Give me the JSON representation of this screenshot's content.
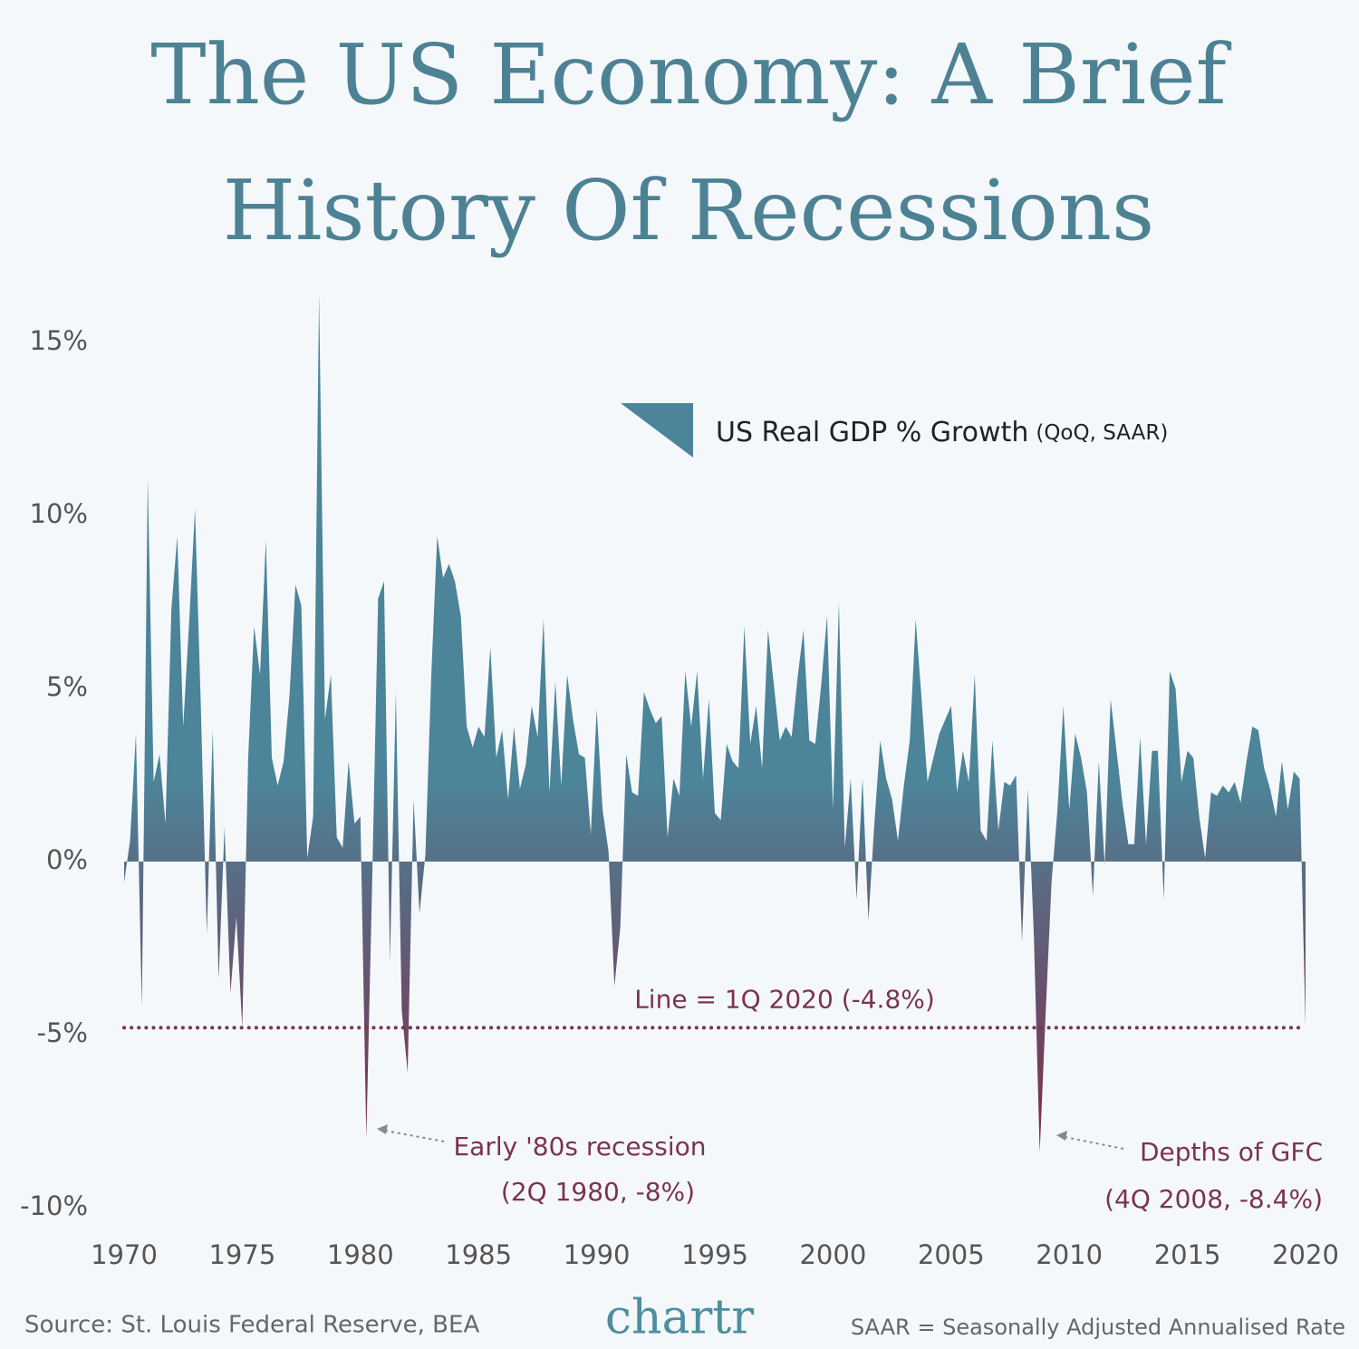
{
  "chart_data": {
    "type": "area",
    "title": [
      "The US Economy: A Brief",
      "History Of Recessions"
    ],
    "series": [
      {
        "name": "US Real GDP % Growth",
        "color_top": "#4c8499",
        "color_bottom": "#7d2c4c",
        "values": [
          -0.6,
          0.6,
          3.7,
          -4.2,
          11.1,
          2.3,
          3.1,
          1.1,
          7.3,
          9.4,
          3.9,
          6.9,
          10.2,
          4.4,
          -2.1,
          3.8,
          -3.4,
          1.0,
          -3.8,
          -1.6,
          -4.8,
          3.0,
          6.8,
          5.4,
          9.3,
          3.0,
          2.2,
          2.9,
          4.8,
          8.0,
          7.4,
          0.1,
          1.3,
          16.4,
          4.1,
          5.4,
          0.7,
          0.4,
          2.9,
          1.1,
          1.3,
          -8.0,
          -0.5,
          7.6,
          8.1,
          -2.9,
          4.9,
          -4.3,
          -6.1,
          1.8,
          -1.5,
          0.2,
          5.4,
          9.4,
          8.2,
          8.6,
          8.1,
          7.1,
          3.9,
          3.3,
          3.9,
          3.6,
          6.2,
          3.0,
          3.8,
          1.8,
          3.9,
          2.1,
          2.8,
          4.5,
          3.6,
          7.0,
          2.0,
          5.2,
          2.2,
          5.4,
          4.1,
          3.1,
          3.0,
          0.8,
          4.4,
          1.5,
          0.3,
          -3.6,
          -1.9,
          3.1,
          2.0,
          1.9,
          4.9,
          4.4,
          4.0,
          4.2,
          0.7,
          2.4,
          1.9,
          5.5,
          3.9,
          5.5,
          2.4,
          4.7,
          1.4,
          1.2,
          3.4,
          2.9,
          2.7,
          6.8,
          3.4,
          4.5,
          2.7,
          6.7,
          5.1,
          3.5,
          3.9,
          3.6,
          5.3,
          6.7,
          3.5,
          3.4,
          5.1,
          7.1,
          1.5,
          7.5,
          0.4,
          2.4,
          -1.1,
          2.4,
          -1.7,
          1.1,
          3.5,
          2.4,
          1.8,
          0.6,
          2.2,
          3.5,
          7.0,
          4.7,
          2.3,
          3.0,
          3.7,
          4.1,
          4.5,
          2.0,
          3.2,
          2.3,
          5.4,
          0.9,
          0.6,
          3.5,
          0.9,
          2.3,
          2.2,
          2.5,
          -2.3,
          2.1,
          -2.1,
          -8.4,
          -4.4,
          -0.6,
          1.5,
          4.5,
          1.5,
          3.7,
          3.0,
          2.0,
          -1.0,
          2.9,
          -0.1,
          4.7,
          3.2,
          1.7,
          0.5,
          0.5,
          3.6,
          0.5,
          3.2,
          3.2,
          -1.1,
          5.5,
          5.0,
          2.3,
          3.2,
          3.0,
          1.3,
          0.1,
          2.0,
          1.9,
          2.2,
          2.0,
          2.3,
          1.7,
          2.9,
          3.9,
          3.8,
          2.7,
          2.1,
          1.3,
          2.9,
          1.5,
          2.6,
          2.4,
          -4.8
        ]
      }
    ],
    "x": [
      1970,
      1970.25,
      1970.5,
      1970.75,
      1971,
      1971.25,
      1971.5,
      1971.75,
      1972,
      1972.25,
      1972.5,
      1972.75,
      1973,
      1973.25,
      1973.5,
      1973.75,
      1974,
      1974.25,
      1974.5,
      1974.75,
      1975,
      1975.25,
      1975.5,
      1975.75,
      1976,
      1976.25,
      1976.5,
      1976.75,
      1977,
      1977.25,
      1977.5,
      1977.75,
      1978,
      1978.25,
      1978.5,
      1978.75,
      1979,
      1979.25,
      1979.5,
      1979.75,
      1980,
      1980.25,
      1980.5,
      1980.75,
      1981,
      1981.25,
      1981.5,
      1981.75,
      1982,
      1982.25,
      1982.5,
      1982.75,
      1983,
      1983.25,
      1983.5,
      1983.75,
      1984,
      1984.25,
      1984.5,
      1984.75,
      1985,
      1985.25,
      1985.5,
      1985.75,
      1986,
      1986.25,
      1986.5,
      1986.75,
      1987,
      1987.25,
      1987.5,
      1987.75,
      1988,
      1988.25,
      1988.5,
      1988.75,
      1989,
      1989.25,
      1989.5,
      1989.75,
      1990,
      1990.25,
      1990.5,
      1990.75,
      1991,
      1991.25,
      1991.5,
      1991.75,
      1992,
      1992.25,
      1992.5,
      1992.75,
      1993,
      1993.25,
      1993.5,
      1993.75,
      1994,
      1994.25,
      1994.5,
      1994.75,
      1995,
      1995.25,
      1995.5,
      1995.75,
      1996,
      1996.25,
      1996.5,
      1996.75,
      1997,
      1997.25,
      1997.5,
      1997.75,
      1998,
      1998.25,
      1998.5,
      1998.75,
      1999,
      1999.25,
      1999.5,
      1999.75,
      2000,
      2000.25,
      2000.5,
      2000.75,
      2001,
      2001.25,
      2001.5,
      2001.75,
      2002,
      2002.25,
      2002.5,
      2002.75,
      2003,
      2003.25,
      2003.5,
      2003.75,
      2004,
      2004.25,
      2004.5,
      2004.75,
      2005,
      2005.25,
      2005.5,
      2005.75,
      2006,
      2006.25,
      2006.5,
      2006.75,
      2007,
      2007.25,
      2007.5,
      2007.75,
      2008,
      2008.25,
      2008.5,
      2008.75,
      2009,
      2009.25,
      2009.5,
      2009.75,
      2010,
      2010.25,
      2010.5,
      2010.75,
      2011,
      2011.25,
      2011.5,
      2011.75,
      2012,
      2012.25,
      2012.5,
      2012.75,
      2013,
      2013.25,
      2013.5,
      2013.75,
      2014,
      2014.25,
      2014.5,
      2014.75,
      2015,
      2015.25,
      2015.5,
      2015.75,
      2016,
      2016.25,
      2016.5,
      2016.75,
      2017,
      2017.25,
      2017.5,
      2017.75,
      2018,
      2018.25,
      2018.5,
      2018.75,
      2019,
      2019.25,
      2019.5,
      2019.75,
      2020
    ],
    "xlim": [
      1970,
      2020
    ],
    "xticks": [
      1970,
      1975,
      1980,
      1985,
      1990,
      1995,
      2000,
      2005,
      2010,
      2015,
      2020
    ],
    "ylim": [
      -10,
      16.5
    ],
    "yticks": [
      {
        "value": 15,
        "label": "15%"
      },
      {
        "value": 10,
        "label": "10%"
      },
      {
        "value": 5,
        "label": "5%"
      },
      {
        "value": 0,
        "label": "0%"
      },
      {
        "value": -5,
        "label": "-5%"
      },
      {
        "value": -10,
        "label": "-10%"
      }
    ],
    "legend_note": "(QoQ, SAAR)",
    "reference_line": {
      "value": -4.8,
      "label": "Line = 1Q 2020 (-4.8%)",
      "color": "#7b3350"
    },
    "annotations": [
      {
        "lines": [
          "Early '80s recession",
          "(2Q 1980, -8%)"
        ]
      },
      {
        "lines": [
          "Depths of GFC",
          "(4Q 2008, -8.4%)"
        ]
      }
    ],
    "source": "Source: St. Louis Federal Reserve, BEA",
    "logo": "chartr",
    "footnote": "SAAR = Seasonally Adjusted Annualised Rate"
  }
}
